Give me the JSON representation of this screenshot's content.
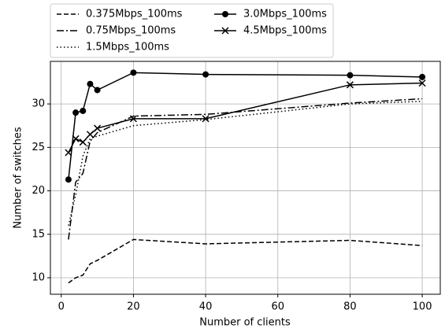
{
  "chart_data": {
    "type": "line",
    "xlabel": "Number of clients",
    "ylabel": "Number of switches",
    "x": [
      2,
      4,
      6,
      8,
      10,
      20,
      40,
      80,
      100
    ],
    "series": [
      {
        "name": "0.375Mbps_100ms",
        "color": "#000000",
        "linestyle": "dashed",
        "marker": "none",
        "values": [
          9.4,
          10,
          10.3,
          11.6,
          12,
          14.4,
          13.9,
          14.3,
          13.7
        ]
      },
      {
        "name": "0.75Mbps_100ms",
        "color": "#000000",
        "linestyle": "dashdot",
        "marker": "none",
        "values": [
          14.4,
          21,
          22,
          25.7,
          26.7,
          28.6,
          28.8,
          30.1,
          30.6
        ]
      },
      {
        "name": "1.5Mbps_100ms",
        "color": "#000000",
        "linestyle": "dotted",
        "marker": "none",
        "values": [
          16,
          19.5,
          24,
          26,
          26.3,
          27.5,
          28.2,
          30,
          30.3
        ]
      },
      {
        "name": "3.0Mbps_100ms",
        "color": "#000000",
        "linestyle": "solid",
        "marker": "circle",
        "values": [
          21.3,
          29,
          29.2,
          32.3,
          31.6,
          33.6,
          33.4,
          33.3,
          33.1
        ]
      },
      {
        "name": "4.5Mbps_100ms",
        "color": "#000000",
        "linestyle": "solid",
        "marker": "x",
        "values": [
          24.4,
          26,
          25.6,
          26.5,
          27.2,
          28.3,
          28.3,
          32.2,
          32.4
        ]
      }
    ],
    "xlim": [
      -3,
      105
    ],
    "xticks": [
      0,
      20,
      40,
      60,
      80,
      100
    ],
    "ylim": [
      8.1,
      34.9
    ],
    "yticks": [
      10,
      15,
      20,
      25,
      30
    ],
    "grid": true,
    "legend": "upper left outside",
    "legend_columns": 2
  }
}
